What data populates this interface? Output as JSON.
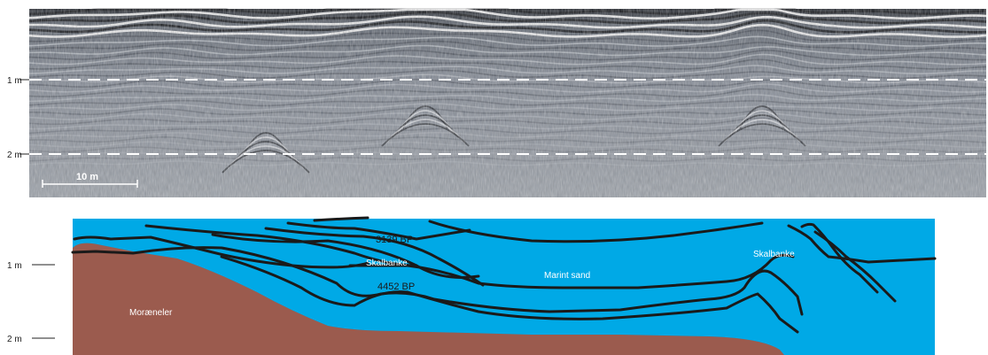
{
  "radargram": {
    "depth_labels": [
      "1 m",
      "2 m"
    ],
    "scale_bar_label": "10 m"
  },
  "interpretation": {
    "depth_labels": [
      "1 m",
      "2 m"
    ],
    "units": {
      "moraeneler": "Moræneler",
      "skalbanke_left": "Skalbanke",
      "marint_sand": "Marint sand",
      "skalbanke_right": "Skalbanke"
    },
    "dates": {
      "upper": "3139 BP",
      "lower": "4452 BP"
    }
  },
  "colors": {
    "water": "#00a9e6",
    "moraine": "#9b5b4e",
    "line": "#1a1a1a",
    "radar_bg": "#8a919c"
  }
}
